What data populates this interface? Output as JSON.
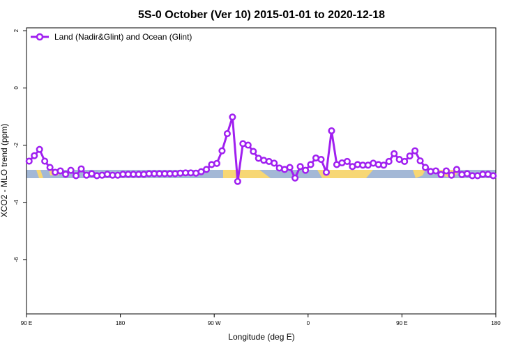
{
  "chart_data": {
    "type": "line",
    "title": "5S-0 October (Ver 10)   2015-01-01 to 2020-12-18",
    "x_label": "Longitude (deg E)",
    "y_label": "XCO2 - MLO trend (ppm)",
    "xlim": [
      90,
      540
    ],
    "ylim": [
      -7.9,
      2.1
    ],
    "xticks": [
      {
        "value": 90,
        "label": "90 E"
      },
      180,
      {
        "value": 270,
        "label": "90 W"
      },
      {
        "value": 360,
        "label": "0"
      },
      {
        "value": 450,
        "label": "90 E"
      },
      {
        "value": 540,
        "label": "180"
      }
    ],
    "yticks": [
      2,
      0,
      -2,
      -4,
      -6
    ],
    "legend": "top-left",
    "x": [
      92.5,
      97.5,
      102.5,
      107.5,
      112.5,
      117.5,
      122.5,
      127.5,
      132.5,
      137.5,
      142.5,
      147.5,
      152.5,
      157.5,
      162.5,
      167.5,
      172.5,
      177.5,
      182.5,
      187.5,
      192.5,
      197.5,
      202.5,
      207.5,
      212.5,
      217.5,
      222.5,
      227.5,
      232.5,
      237.5,
      242.5,
      247.5,
      252.5,
      257.5,
      262.5,
      267.5,
      272.5,
      277.5,
      282.5,
      287.5,
      292.5,
      297.5,
      302.5,
      307.5,
      312.5,
      317.5,
      322.5,
      327.5,
      332.5,
      337.5,
      342.5,
      347.5,
      352.5,
      357.5,
      362.5,
      367.5,
      372.5,
      377.5,
      382.5,
      387.5,
      392.5,
      397.5,
      402.5,
      407.5,
      412.5,
      417.5,
      422.5,
      427.5,
      432.5,
      437.5,
      442.5,
      447.5,
      452.5,
      457.5,
      462.5,
      467.5,
      472.5,
      477.5,
      482.5,
      487.5,
      492.5,
      497.5,
      502.5,
      507.5,
      512.5,
      517.5,
      522.5,
      527.5,
      532.5,
      537.5
    ],
    "series": [
      {
        "name": "Land (Nadir&Glint) and Ocean (Glint)",
        "color": "#a020f0",
        "values": [
          -2.56,
          -2.37,
          -2.15,
          -2.56,
          -2.78,
          -2.95,
          -2.9,
          -3.02,
          -2.88,
          -3.07,
          -2.83,
          -3.05,
          -3.0,
          -3.07,
          -3.05,
          -3.02,
          -3.05,
          -3.05,
          -3.02,
          -3.02,
          -3.02,
          -3.02,
          -3.02,
          -3.0,
          -3.0,
          -3.0,
          -3.0,
          -3.0,
          -3.0,
          -2.98,
          -2.97,
          -2.97,
          -2.98,
          -2.93,
          -2.85,
          -2.68,
          -2.64,
          -2.2,
          -1.6,
          -1.02,
          -3.27,
          -1.95,
          -2.0,
          -2.22,
          -2.46,
          -2.53,
          -2.57,
          -2.63,
          -2.8,
          -2.85,
          -2.78,
          -3.15,
          -2.75,
          -2.88,
          -2.68,
          -2.45,
          -2.5,
          -2.95,
          -1.5,
          -2.68,
          -2.62,
          -2.57,
          -2.75,
          -2.68,
          -2.7,
          -2.7,
          -2.63,
          -2.68,
          -2.7,
          -2.57,
          -2.3,
          -2.5,
          -2.57,
          -2.38,
          -2.2,
          -2.55,
          -2.78,
          -2.92,
          -2.9,
          -3.03,
          -2.9,
          -3.05,
          -2.85,
          -3.03,
          -3.0,
          -3.07,
          -3.07,
          -3.02,
          -3.02,
          -3.07
        ]
      }
    ]
  }
}
